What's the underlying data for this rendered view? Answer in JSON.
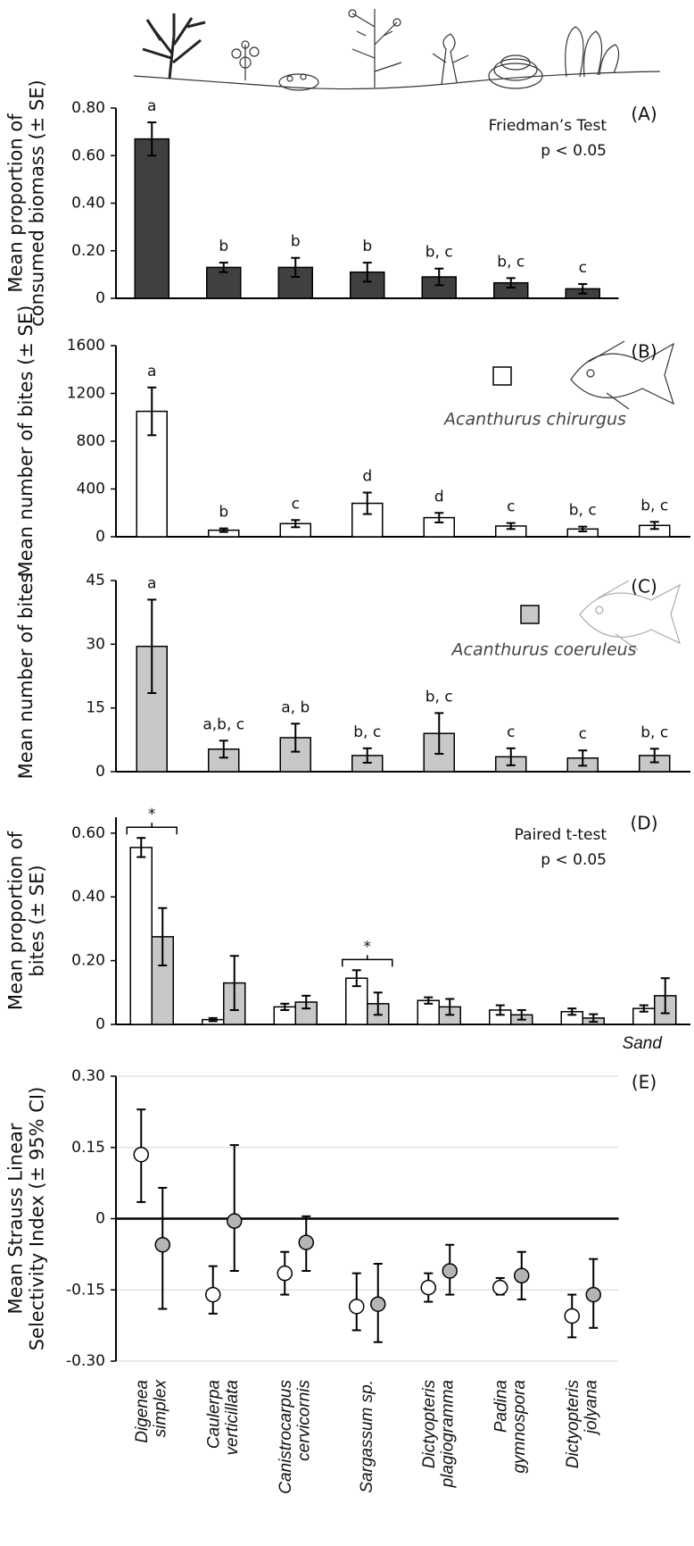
{
  "chart_data": [
    {
      "type": "bar",
      "categories": [
        null,
        null,
        null,
        null,
        null,
        null,
        null
      ],
      "values": [
        0.67,
        0.13,
        0.13,
        0.11,
        0.09,
        0.065,
        0.04
      ],
      "errors": [
        0.07,
        0.02,
        0.04,
        0.04,
        0.035,
        0.02,
        0.02
      ],
      "letters": [
        "a",
        "b",
        "b",
        "b",
        "b, c",
        "b, c",
        "c"
      ],
      "color": "#404040",
      "ylabel": [
        "Mean proportion of",
        "consumed biomass (± SE)"
      ],
      "panel": "(A)",
      "notes": [
        "Friedman’s Test",
        "p < 0.05"
      ],
      "ylim": [
        0,
        0.8
      ],
      "yticks": [
        0,
        {
          "value": 0.2,
          "label": "0.20"
        },
        {
          "value": 0.4,
          "label": "0.40"
        },
        {
          "value": 0.6,
          "label": "0.60"
        },
        {
          "value": 0.8,
          "label": "0.80"
        }
      ]
    },
    {
      "type": "bar",
      "categories": [
        null,
        null,
        null,
        null,
        null,
        null,
        null,
        null
      ],
      "series": [
        {
          "name": "Acanthurus chirurgus",
          "color": "#ffffff",
          "values": [
            1050,
            55,
            110,
            280,
            160,
            90,
            65,
            95
          ],
          "errors": [
            200,
            15,
            30,
            90,
            40,
            25,
            20,
            30
          ]
        }
      ],
      "letters": [
        "a",
        "b",
        "c",
        "d",
        "d",
        "c",
        "b, c",
        "b, c"
      ],
      "ylabel": [
        "Mean number of bites (± SE)"
      ],
      "panel": "(B)",
      "ylim": [
        0,
        1600
      ],
      "yticks": [
        0,
        400,
        800,
        1200,
        1600
      ]
    },
    {
      "type": "bar",
      "categories": [
        null,
        null,
        null,
        null,
        null,
        null,
        null,
        null
      ],
      "series": [
        {
          "name": "Acanthurus coeruleus",
          "color": "#c8c8c8",
          "values": [
            29.5,
            5.3,
            8,
            3.8,
            9,
            3.5,
            3.2,
            3.8
          ],
          "errors": [
            11,
            2,
            3.3,
            1.7,
            4.8,
            2,
            1.8,
            1.6
          ]
        }
      ],
      "letters": [
        "a",
        "a,b, c",
        "a, b",
        "b, c",
        "b, c",
        "c",
        "c",
        "b, c"
      ],
      "ylabel": [
        "Mean number of bites"
      ],
      "panel": "(C)",
      "ylim": [
        0,
        45
      ],
      "yticks": [
        0,
        15,
        30,
        45
      ]
    },
    {
      "type": "bar",
      "categories": [
        null,
        null,
        null,
        null,
        null,
        null,
        null,
        "Sand"
      ],
      "series": [
        {
          "color": "#ffffff",
          "values": [
            0.555,
            0.015,
            0.055,
            0.145,
            0.075,
            0.045,
            0.04,
            0.05
          ],
          "errors": [
            0.03,
            0.005,
            0.01,
            0.025,
            0.01,
            0.015,
            0.01,
            0.01
          ]
        },
        {
          "color": "#c8c8c8",
          "values": [
            0.275,
            0.13,
            0.07,
            0.065,
            0.055,
            0.03,
            0.02,
            0.09
          ],
          "errors": [
            0.09,
            0.085,
            0.02,
            0.035,
            0.025,
            0.015,
            0.012,
            0.055
          ]
        }
      ],
      "significance": [
        "*",
        null,
        null,
        "*",
        null,
        null,
        null,
        null
      ],
      "ylabel": [
        "Mean proportion of",
        "bites (± SE)"
      ],
      "panel": "(D)",
      "notes": [
        "Paired t-test",
        "p < 0.05"
      ],
      "ylim": [
        0,
        0.65
      ],
      "yticks": [
        0,
        {
          "value": 0.2,
          "label": "0.20"
        },
        {
          "value": 0.4,
          "label": "0.40"
        },
        {
          "value": 0.6,
          "label": "0.60"
        }
      ]
    },
    {
      "type": "scatter",
      "categories": [
        [
          "Digenea",
          "simplex"
        ],
        [
          "Caulerpa",
          "verticillata"
        ],
        [
          "Canistrocarpus",
          "cervicornis"
        ],
        [
          "Sargassum sp."
        ],
        [
          "Dictyopteris",
          "plagiogramma"
        ],
        [
          "Padina",
          "gymnospora"
        ],
        [
          "Dictyopteris",
          "jolyana"
        ]
      ],
      "series": [
        {
          "color": "#ffffff",
          "values": [
            0.135,
            -0.16,
            -0.115,
            -0.185,
            -0.145,
            -0.145,
            -0.205
          ],
          "lower": [
            0.035,
            -0.2,
            -0.16,
            -0.235,
            -0.175,
            -0.16,
            -0.25
          ],
          "upper": [
            0.23,
            -0.1,
            -0.07,
            -0.115,
            -0.115,
            -0.125,
            -0.16
          ]
        },
        {
          "color": "#b4b4b4",
          "values": [
            -0.055,
            -0.005,
            -0.05,
            -0.18,
            -0.11,
            -0.12,
            -0.16
          ],
          "lower": [
            -0.19,
            -0.11,
            -0.11,
            -0.26,
            -0.16,
            -0.17,
            -0.23
          ],
          "upper": [
            0.065,
            0.155,
            0.005,
            -0.095,
            -0.055,
            -0.07,
            -0.085
          ]
        }
      ],
      "ylabel": [
        "Mean Strauss Linear",
        "Selectivity Index (± 95% CI)"
      ],
      "panel": "(E)",
      "grid": true,
      "zero_line": true,
      "ylim": [
        -0.3,
        0.3
      ],
      "yticks": [
        {
          "value": -0.3,
          "label": "-0.30"
        },
        {
          "value": -0.15,
          "label": "-0.15"
        },
        0,
        {
          "value": 0.15,
          "label": "0.15"
        },
        {
          "value": 0.3,
          "label": "0.30"
        }
      ]
    }
  ]
}
